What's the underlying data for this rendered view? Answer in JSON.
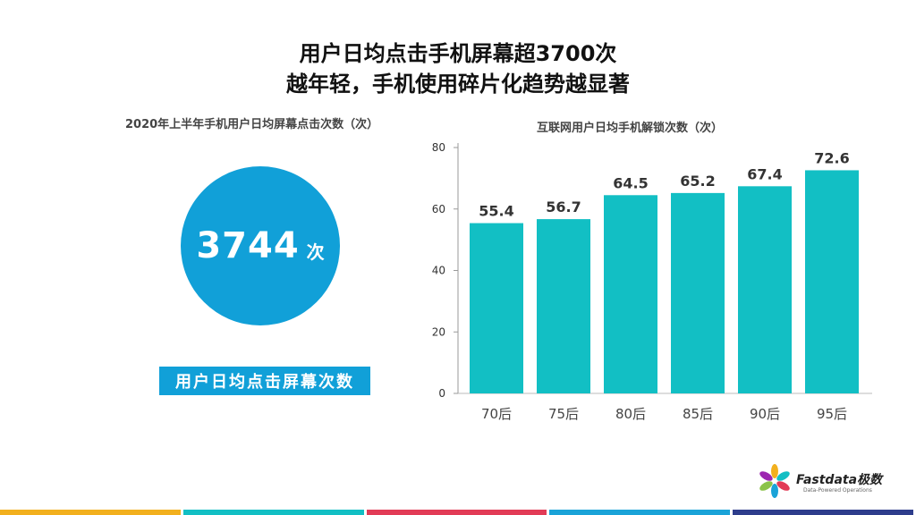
{
  "headline": {
    "line1": "用户日均点击手机屏幕超3700次",
    "line2": "越年轻，手机使用碎片化趋势越显著"
  },
  "left_panel": {
    "subtitle": "2020年上半年手机用户日均屏幕点击次数（次）",
    "value": "3744",
    "unit": "次",
    "label": "用户日均点击屏幕次数",
    "circle_color": "#11a0d8"
  },
  "chart_data": {
    "type": "bar",
    "title": "互联网用户日均手机解锁次数（次）",
    "categories": [
      "70后",
      "75后",
      "80后",
      "85后",
      "90后",
      "95后"
    ],
    "values": [
      55.4,
      56.7,
      64.5,
      65.2,
      67.4,
      72.6
    ],
    "value_labels": [
      "55.4",
      "56.7",
      "64.5",
      "65.2",
      "67.4",
      "72.6"
    ],
    "ylim": [
      0,
      80
    ],
    "yticks": [
      0,
      20,
      40,
      60,
      80
    ],
    "bar_color": "#12bfc4",
    "grid": false
  },
  "logo": {
    "brand": "Fastdata极数",
    "tagline": "Data-Powered Operations"
  },
  "footer_strip_colors": [
    "#f2b01e",
    "#12bfc4",
    "#e23b56",
    "#1aa3d8",
    "#2e3d8c"
  ]
}
